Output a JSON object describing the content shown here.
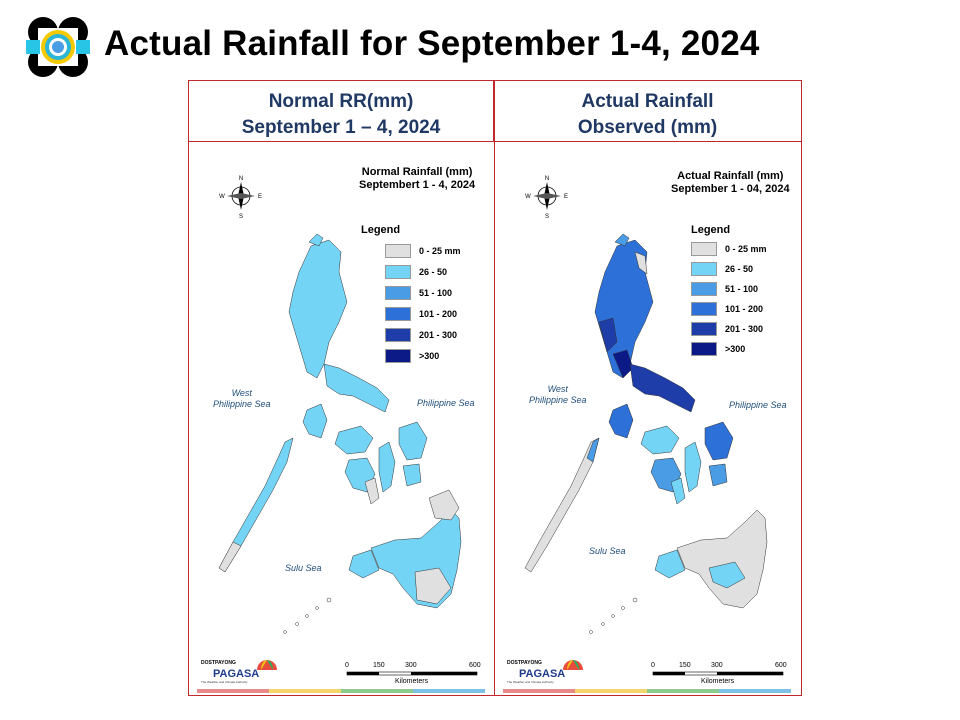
{
  "title": "Actual Rainfall for September 1-4, 2024",
  "colors": {
    "frame": "#c0282d",
    "header_text": "#1f3864",
    "scale_0_25": "#e0e0e0",
    "scale_26_50": "#74d4f6",
    "scale_51_100": "#4a9ce4",
    "scale_101_200": "#2d70d8",
    "scale_201_300": "#1e3da8",
    "scale_gt300": "#0b1a86"
  },
  "left_panel": {
    "header_line1": "Normal RR(mm)",
    "header_line2": "September 1 – 4, 2024",
    "map_title_line1": "Normal Rainfall (mm)",
    "map_title_line2": "Septembert 1 - 4, 2024"
  },
  "right_panel": {
    "header_line1": "Actual Rainfall",
    "header_line2": "Observed (mm)",
    "map_title_line1": "Actual Rainfall (mm)",
    "map_title_line2": "September 1 - 04, 2024"
  },
  "legend": {
    "title": "Legend",
    "items": [
      {
        "label": "0 - 25 mm",
        "color": "#e0e0e0"
      },
      {
        "label": "26 - 50",
        "color": "#74d4f6"
      },
      {
        "label": "51 - 100",
        "color": "#4a9ce4"
      },
      {
        "label": "101 - 200",
        "color": "#2d70d8"
      },
      {
        "label": "201 - 300",
        "color": "#1e3da8"
      },
      {
        "label": ">300",
        "color": "#0b1a86"
      }
    ]
  },
  "seas": {
    "west_line1": "West",
    "west_line2": "Philippine Sea",
    "east": "Philippine Sea",
    "south": "Sulu Sea"
  },
  "compass": {
    "n": "N",
    "s": "S",
    "e": "E",
    "w": "W"
  },
  "scale_bar": {
    "ticks": [
      "0",
      "150",
      "300",
      "600"
    ],
    "unit": "Kilometers"
  },
  "branding": {
    "pagasa": "PAGASA",
    "tagline": "The Weather and Climate Authority",
    "dost": "DOST",
    "payong": "PAYONG"
  },
  "icons": {
    "logo": "dost-seal-logo",
    "compass": "compass-rose-icon",
    "pagasa_logo": "pagasa-umbrella-logo"
  }
}
